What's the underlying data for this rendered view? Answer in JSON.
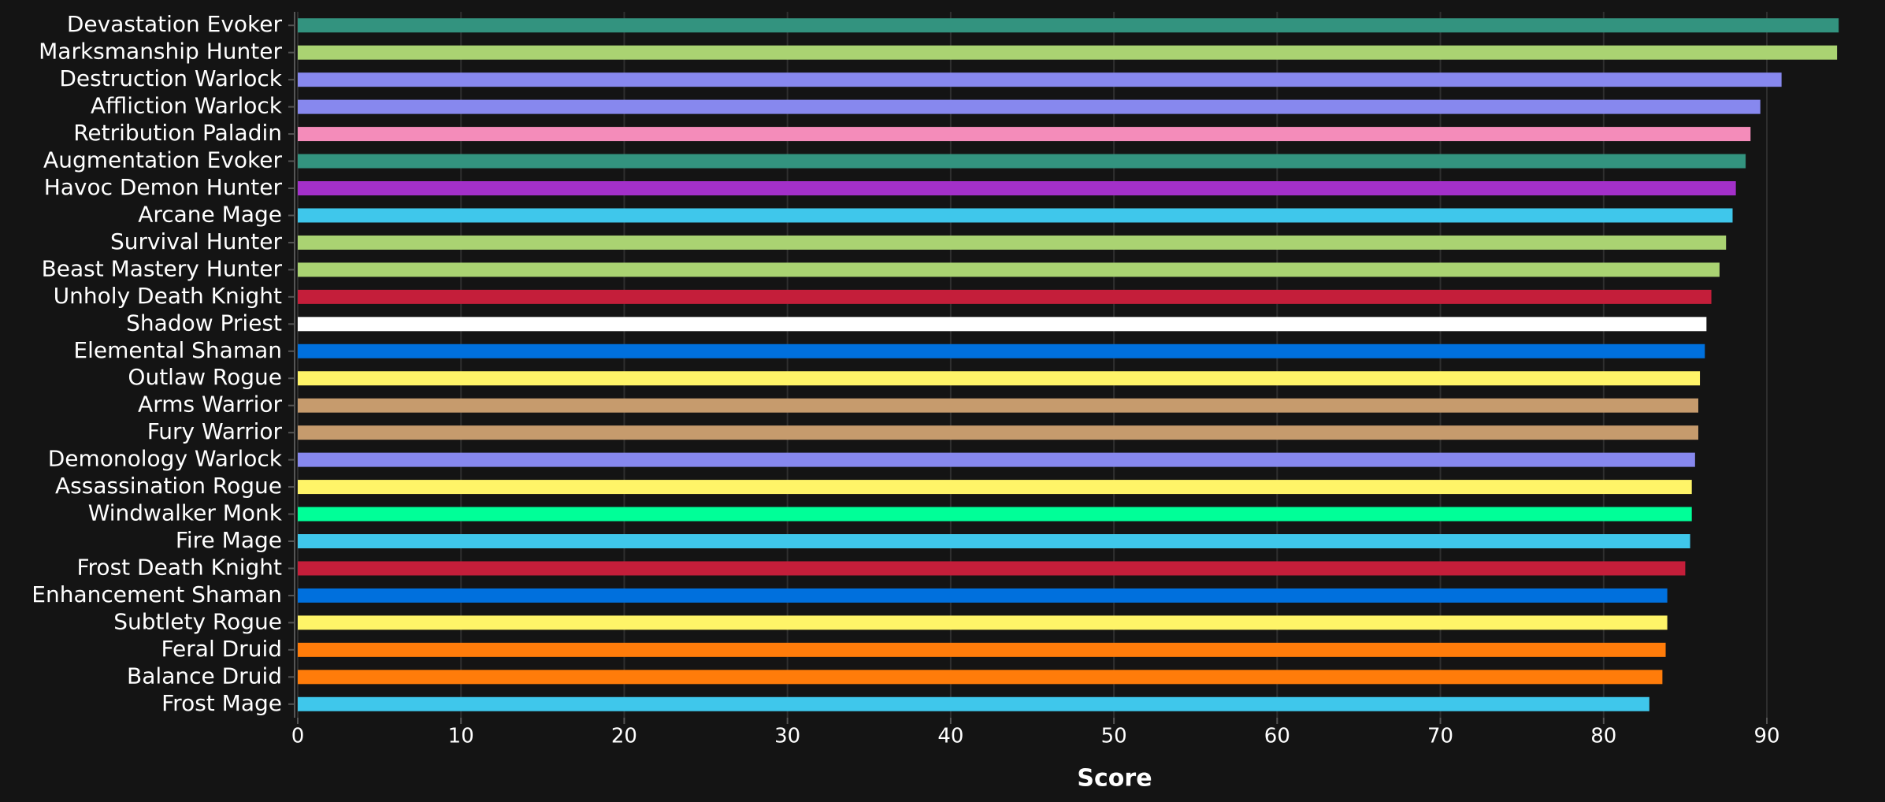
{
  "chart_data": {
    "type": "bar",
    "orientation": "horizontal",
    "x_label": "Score",
    "categories": [
      "Devastation Evoker",
      "Marksmanship Hunter",
      "Destruction Warlock",
      "Affliction Warlock",
      "Retribution Paladin",
      "Augmentation Evoker",
      "Havoc Demon Hunter",
      "Arcane Mage",
      "Survival Hunter",
      "Beast Mastery Hunter",
      "Unholy Death Knight",
      "Shadow Priest",
      "Elemental Shaman",
      "Outlaw Rogue",
      "Arms Warrior",
      "Fury Warrior",
      "Demonology Warlock",
      "Assassination Rogue",
      "Windwalker Monk",
      "Fire Mage",
      "Frost Death Knight",
      "Enhancement Shaman",
      "Subtlety Rogue",
      "Feral Druid",
      "Balance Druid",
      "Frost Mage"
    ],
    "values": [
      94.4,
      94.3,
      90.9,
      89.6,
      89.0,
      88.7,
      88.1,
      87.9,
      87.5,
      87.1,
      86.6,
      86.3,
      86.2,
      85.9,
      85.8,
      85.8,
      85.6,
      85.4,
      85.4,
      85.3,
      85.0,
      83.9,
      83.9,
      83.8,
      83.6,
      82.8
    ],
    "colors": [
      "#33937f",
      "#aad372",
      "#8788ee",
      "#8788ee",
      "#f48cba",
      "#33937f",
      "#a330c9",
      "#3fc7eb",
      "#aad372",
      "#aad372",
      "#c41e3a",
      "#ffffff",
      "#0070dd",
      "#fff468",
      "#c69b6d",
      "#c69b6d",
      "#8788ee",
      "#fff468",
      "#00ff98",
      "#3fc7eb",
      "#c41e3a",
      "#0070dd",
      "#fff468",
      "#ff7c0a",
      "#ff7c0a",
      "#3fc7eb"
    ],
    "xlim": [
      0,
      95.5
    ],
    "xticks": [
      0,
      10,
      20,
      30,
      40,
      50,
      60,
      70,
      80,
      90
    ],
    "grid": true
  }
}
